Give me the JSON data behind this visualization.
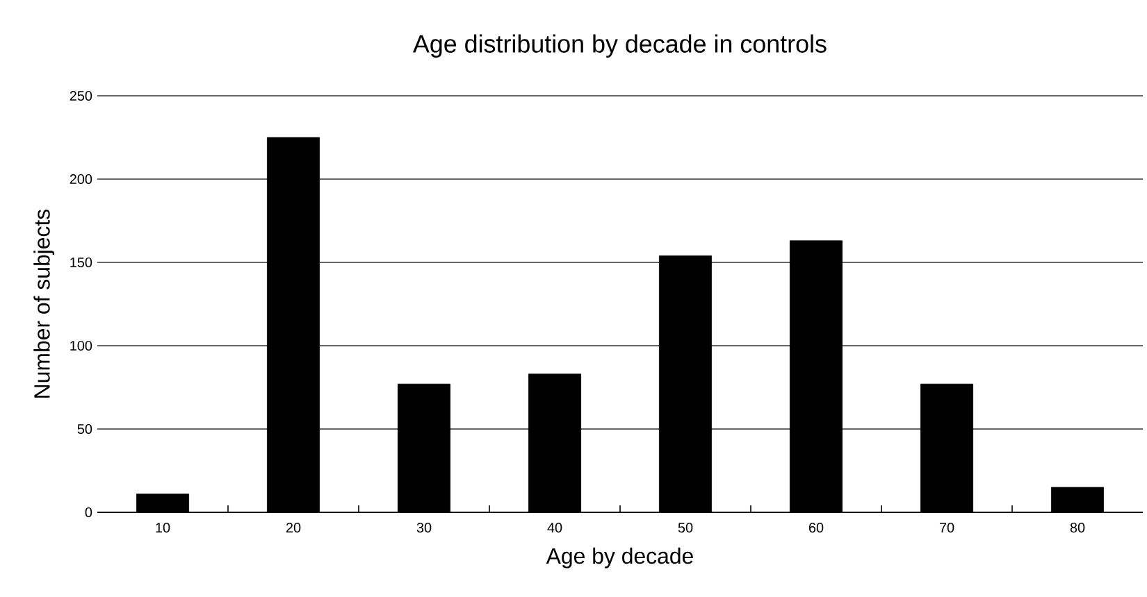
{
  "chart_data": {
    "type": "bar",
    "title": "Age distribution by decade in controls",
    "xlabel": "Age by decade",
    "ylabel": "Number of subjects",
    "categories": [
      "10",
      "20",
      "30",
      "40",
      "50",
      "60",
      "70",
      "80"
    ],
    "values": [
      11,
      225,
      77,
      83,
      154,
      163,
      77,
      15
    ],
    "color": "#000000",
    "ylim": [
      0,
      250
    ],
    "yticks": [
      0,
      50,
      100,
      150,
      200,
      250
    ],
    "grid": "y"
  }
}
